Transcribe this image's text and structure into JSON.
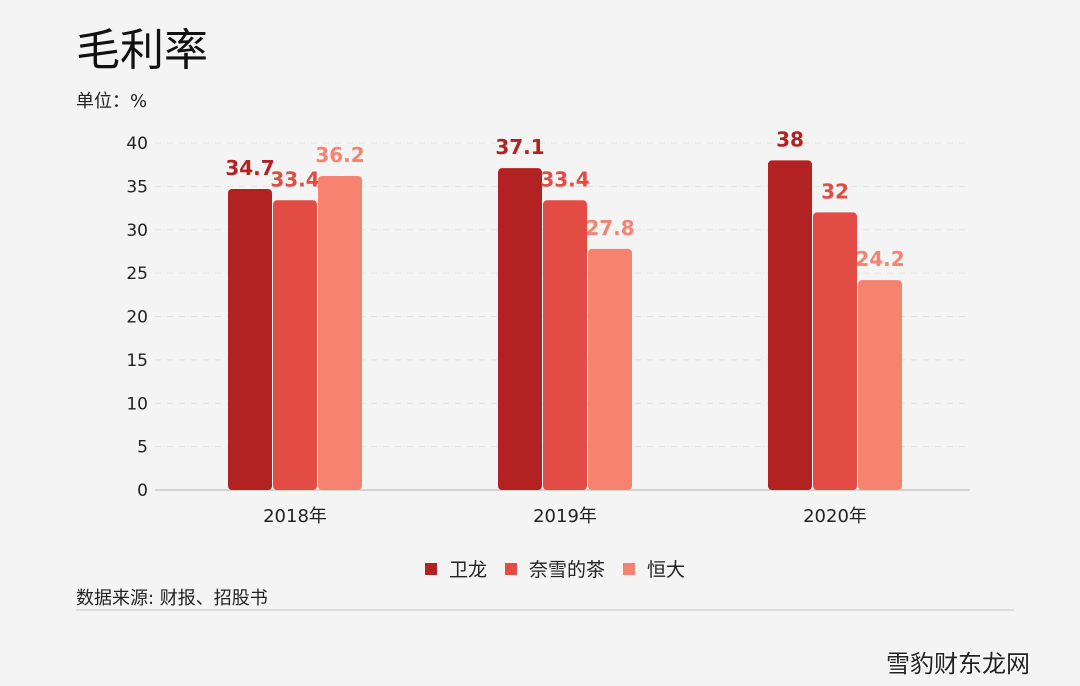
{
  "chart_data": {
    "type": "bar",
    "title": "毛利率",
    "unit_label": "单位：%",
    "categories": [
      "2018年",
      "2019年",
      "2020年"
    ],
    "series": [
      {
        "name": "卫龙",
        "values": [
          34.7,
          37.1,
          38
        ],
        "color": "#b22222"
      },
      {
        "name": "奈雪的茶",
        "values": [
          33.4,
          33.4,
          32
        ],
        "color": "#e24c45"
      },
      {
        "name": "恒大",
        "values": [
          36.2,
          27.8,
          24.2
        ],
        "color": "#f68370"
      }
    ],
    "yticks": [
      0,
      5,
      10,
      15,
      20,
      25,
      30,
      35,
      40
    ],
    "ylim": [
      0,
      40
    ],
    "grid": true,
    "legend_position": "bottom"
  },
  "source": "数据来源: 财报、招股书",
  "watermark": "雪豹财东龙网"
}
